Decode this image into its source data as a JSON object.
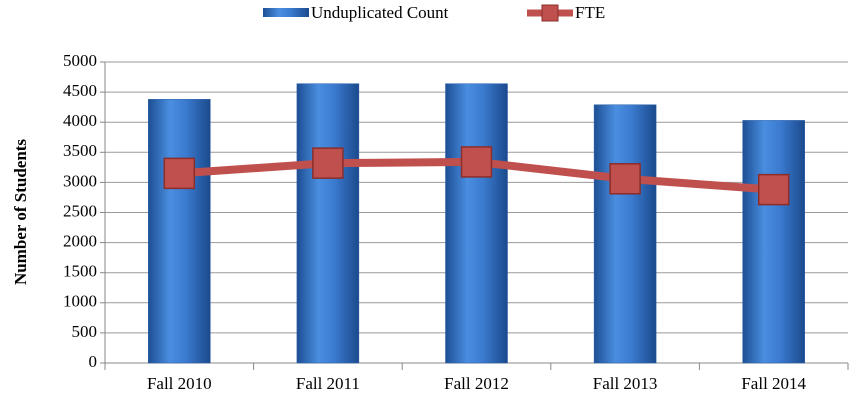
{
  "chart_data": {
    "type": "bar",
    "y_label": "Number of Students",
    "categories": [
      "Fall 2010",
      "Fall 2011",
      "Fall 2012",
      "Fall 2013",
      "Fall 2014"
    ],
    "series": [
      {
        "name": "Unduplicated Count",
        "type": "bar",
        "color": "#3a78c8",
        "values": [
          4380,
          4640,
          4640,
          4290,
          4030
        ]
      },
      {
        "name": "FTE",
        "type": "line",
        "color": "#c0504d",
        "values": [
          3150,
          3320,
          3340,
          3060,
          2880
        ]
      }
    ],
    "ylim": [
      0,
      5000
    ],
    "yticks": [
      0,
      500,
      1000,
      1500,
      2000,
      2500,
      3000,
      3500,
      4000,
      4500,
      5000
    ],
    "grid": true,
    "legend": "top"
  }
}
